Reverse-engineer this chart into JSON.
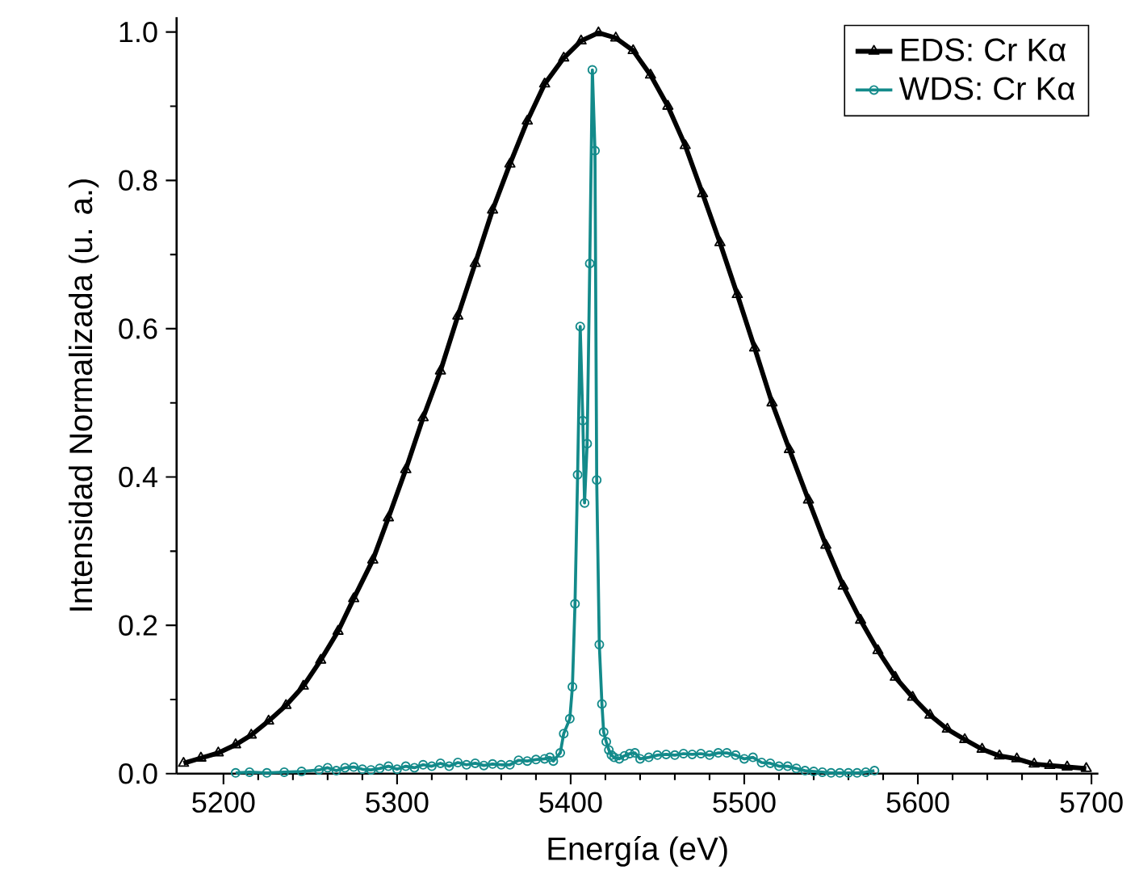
{
  "chart_data": {
    "type": "line",
    "xlabel": "Energía (eV)",
    "ylabel": "Intensidad Normalizada (u. a.)",
    "xlim": [
      5173,
      5704
    ],
    "ylim": [
      0,
      1.02
    ],
    "xticks": [
      5200,
      5300,
      5400,
      5500,
      5600,
      5700
    ],
    "yticks": [
      {
        "value": 0,
        "label": "0.0"
      },
      0.2,
      0.4,
      0.6,
      0.8,
      {
        "value": 1,
        "label": "1.0"
      }
    ],
    "grid": false,
    "legend": "top right",
    "line_style": "solid",
    "series": [
      {
        "name": "EDS: Cr Kα",
        "color": "#000000",
        "marker": "triangle",
        "x": [
          5177,
          5187,
          5197,
          5207,
          5216,
          5226,
          5236,
          5246,
          5256,
          5266,
          5275,
          5286,
          5295,
          5305,
          5315,
          5325,
          5335,
          5345,
          5355,
          5365,
          5375,
          5385,
          5396,
          5406,
          5416,
          5426,
          5436,
          5446,
          5456,
          5466,
          5476,
          5486,
          5496,
          5506,
          5516,
          5526,
          5537,
          5547,
          5557,
          5567,
          5577,
          5587,
          5597,
          5607,
          5617,
          5627,
          5637,
          5647,
          5657,
          5667,
          5676,
          5686,
          5697
        ],
        "values": [
          0.014,
          0.021,
          0.028,
          0.039,
          0.052,
          0.071,
          0.092,
          0.118,
          0.153,
          0.192,
          0.236,
          0.288,
          0.345,
          0.41,
          0.48,
          0.543,
          0.617,
          0.688,
          0.76,
          0.822,
          0.88,
          0.93,
          0.965,
          0.988,
          0.999,
          0.992,
          0.975,
          0.942,
          0.9,
          0.847,
          0.782,
          0.716,
          0.646,
          0.574,
          0.5,
          0.437,
          0.369,
          0.308,
          0.253,
          0.207,
          0.166,
          0.13,
          0.103,
          0.079,
          0.06,
          0.046,
          0.033,
          0.024,
          0.02,
          0.013,
          0.011,
          0.009,
          0.007
        ]
      },
      {
        "name": "WDS: Cr Kα",
        "color": "#138a8a",
        "marker": "circle",
        "x": [
          5207,
          5215,
          5225,
          5235,
          5245,
          5255,
          5260,
          5265,
          5270,
          5275,
          5280,
          5285,
          5290,
          5295,
          5300,
          5305,
          5310,
          5315,
          5320,
          5325,
          5330,
          5335,
          5340,
          5345,
          5350,
          5355,
          5360,
          5365,
          5370,
          5375,
          5380,
          5385,
          5388,
          5390,
          5394,
          5396,
          5399.5,
          5401,
          5402.5,
          5404,
          5405.5,
          5407,
          5408,
          5409.5,
          5411,
          5412.5,
          5414,
          5415,
          5416.5,
          5418,
          5419,
          5420.5,
          5422,
          5423.5,
          5425,
          5428,
          5431,
          5434,
          5437,
          5440,
          5445,
          5450,
          5455,
          5460,
          5465,
          5470,
          5475,
          5480,
          5485,
          5490,
          5495,
          5500,
          5505,
          5510,
          5515,
          5520,
          5525,
          5530,
          5535,
          5540,
          5545,
          5550,
          5555,
          5560,
          5565,
          5570,
          5575
        ],
        "values": [
          0.001,
          0.002,
          0.001,
          0.002,
          0.003,
          0.005,
          0.008,
          0.004,
          0.008,
          0.009,
          0.006,
          0.005,
          0.007,
          0.01,
          0.006,
          0.01,
          0.008,
          0.012,
          0.01,
          0.014,
          0.01,
          0.015,
          0.012,
          0.014,
          0.011,
          0.013,
          0.012,
          0.012,
          0.018,
          0.017,
          0.019,
          0.02,
          0.022,
          0.017,
          0.028,
          0.054,
          0.074,
          0.117,
          0.229,
          0.403,
          0.603,
          0.476,
          0.365,
          0.445,
          0.688,
          0.949,
          0.84,
          0.396,
          0.174,
          0.094,
          0.056,
          0.043,
          0.032,
          0.025,
          0.022,
          0.02,
          0.024,
          0.027,
          0.028,
          0.02,
          0.022,
          0.025,
          0.026,
          0.025,
          0.027,
          0.026,
          0.027,
          0.025,
          0.028,
          0.028,
          0.025,
          0.02,
          0.022,
          0.015,
          0.014,
          0.01,
          0.01,
          0.007,
          0.004,
          0.003,
          0.002,
          0.001,
          0.001,
          0.001,
          0.001,
          0.002,
          0.004
        ]
      }
    ]
  }
}
